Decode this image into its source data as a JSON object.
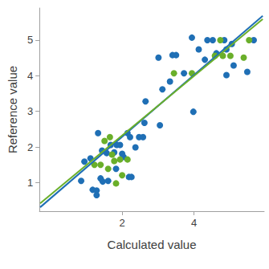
{
  "chart_data": {
    "type": "scatter",
    "x_label": "Calculated value",
    "y_label": "Reference value",
    "xlim": [
      -0.3,
      5.95
    ],
    "ylim": [
      0.2,
      5.9
    ],
    "xticks": [
      2,
      4
    ],
    "yticks": [
      1,
      2,
      3,
      4,
      5
    ],
    "grid": false,
    "series": [
      {
        "type": "scatter",
        "color": "#1f6fb5",
        "marker": "circle",
        "x": [
          0.86,
          0.95,
          1.12,
          1.18,
          1.29,
          1.29,
          1.33,
          1.4,
          1.44,
          1.46,
          1.57,
          1.61,
          1.68,
          1.78,
          1.83,
          1.85,
          1.94,
          2.0,
          2.04,
          2.15,
          2.19,
          2.26,
          2.22,
          2.37,
          2.47,
          2.58,
          2.62,
          2.65,
          3.05,
          3.01,
          3.12,
          3.33,
          3.4,
          3.5,
          3.72,
          3.94,
          3.98,
          4.13,
          4.3,
          4.37,
          4.52,
          4.62,
          4.84,
          4.9,
          4.9,
          5.05,
          5.1,
          5.48,
          5.66
        ],
        "values": [
          1.05,
          1.59,
          1.68,
          0.8,
          0.65,
          0.78,
          2.39,
          1.12,
          1.9,
          1.03,
          1.83,
          1.05,
          2.06,
          1.85,
          1.39,
          2.06,
          2.06,
          1.81,
          1.72,
          2.39,
          1.16,
          1.16,
          2.28,
          1.99,
          2.28,
          2.28,
          2.68,
          3.28,
          2.61,
          4.51,
          3.62,
          3.84,
          4.58,
          4.58,
          4.07,
          5.07,
          2.99,
          4.74,
          4.45,
          5.0,
          5.0,
          4.63,
          5.0,
          4.74,
          4.02,
          4.89,
          4.29,
          4.11,
          5.0
        ]
      },
      {
        "type": "scatter",
        "color": "#6aaf2a",
        "marker": "circle",
        "x": [
          1.23,
          1.4,
          1.61,
          1.72,
          1.78,
          1.94,
          2.0,
          2.15,
          1.83,
          1.66,
          1.51,
          3.44,
          3.94,
          4.58,
          4.73,
          4.8,
          5.01,
          5.38,
          5.53
        ],
        "values": [
          1.5,
          1.5,
          1.39,
          1.79,
          1.61,
          1.65,
          1.21,
          1.65,
          0.98,
          2.28,
          2.17,
          4.07,
          4.07,
          4.56,
          5.0,
          4.56,
          4.56,
          4.51,
          5.0
        ]
      },
      {
        "type": "line",
        "color": "#1f6fb5",
        "line_style": "solid",
        "x": [
          -0.28,
          5.91
        ],
        "values": [
          0.31,
          5.68
        ]
      },
      {
        "type": "line",
        "color": "#6aaf2a",
        "line_style": "solid",
        "x": [
          -0.28,
          5.91
        ],
        "values": [
          0.42,
          5.59
        ]
      }
    ]
  }
}
